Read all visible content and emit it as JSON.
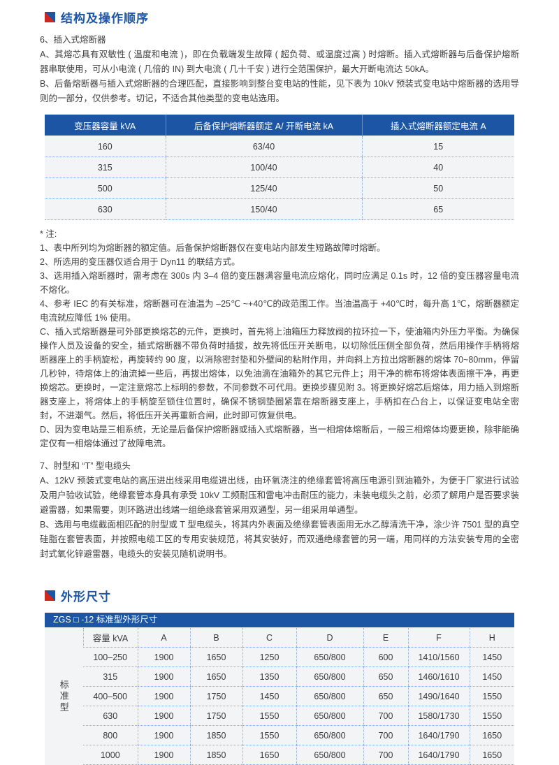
{
  "accent": {
    "blue": "#1b55a4",
    "red": "#ce2722",
    "row_bg": "#f3f4f6",
    "dotted_border": "#8aa7d6"
  },
  "section1": {
    "title": "结构及操作顺序",
    "para6_title": "6、插入式熔断器",
    "para6_a": "A、其熔芯具有双敏性 ( 温度和电流 )，即在负载端发生故障 ( 超负荷、或温度过高 ) 时熔断。插入式熔断器与后备保护熔断器串联使用，可从小电流 ( 几倍的 IN) 到大电流 ( 几十千安 ) 进行全范围保护，最大开断电流达 50kA。",
    "para6_b": "B、后备熔断器与插入式熔断器的合理匹配，直接影响到整台变电站的性能，见下表为 10kV 预装式变电站中熔断器的选用导则的一部分，仅供参考。切记，不适合其他类型的变电站选用。"
  },
  "fuse_table": {
    "headers": [
      "变压器容量 kVA",
      "后备保护熔断器额定 A/ 开断电流 kA",
      "插入式熔断器额定电流 A"
    ],
    "rows": [
      [
        "160",
        "63/40",
        "15"
      ],
      [
        "315",
        "100/40",
        "40"
      ],
      [
        "500",
        "125/40",
        "50"
      ],
      [
        "630",
        "150/40",
        "65"
      ]
    ]
  },
  "notes": {
    "title": "* 注:",
    "items": [
      "1、表中所列均为熔断器的额定值。后备保护熔断器仅在变电站内部发生短路故障时熔断。",
      "2、所选用的变压器仅适合用于 Dyn11 的联结方式。",
      "3、选用插入熔断器时，需考虑在 300s 内 3–4 倍的变压器满容量电流应熔化，同时应满足 0.1s 时，12 倍的变压器容量电流不熔化。",
      "4、参考 IEC 的有关标准，熔断器可在油温为 –25℃ ~+40℃的政范围工作。当油温高于 +40℃时，每升高 1℃，熔断器额定电流就应降低 1% 使用。",
      "C、插入式熔断器是可外部更换熔芯的元件，更换时，首先将上油箱压力释放阀的拉环拉一下，使油箱内外压力平衡。为确保操作人员及设备的安全，插式熔断器不带负荷时插拔，故先将低压开关断电，以切除低压侧全部负荷，然后用操作手柄将熔断器座上的手柄旋松，再旋转约 90 度，以消除密封垫和外壁间的粘附作用，并向斜上方拉出熔断器的熔体 70~80mm，停留几秒钟，待熔体上的油流掉一些后，再拔出熔体，以免油滴在油箱外的其它元件上；用干净的棉布将熔体表面擦干净，再更换熔芯。更换时，一定注意熔芯上标明的参数，不同参数不可代用。更换步骤见附 3。将更换好熔芯后熔体，用力插入到熔断器支座上，将熔体上的手柄旋至锁住位置时，确保不锈钢垫圈紧靠在熔断器支座上，手柄扣在凸台上，以保证变电站全密封，不进潮气。然后，将低压开关再重新合闸，此时即可恢复供电。",
      "D、因为变电站是三相系统，无论是后备保护熔断器或插入式熔断器，当一相熔体熔断后，一般三相熔体均要更换，除非能确定仅有一相熔体通过了故障电流。"
    ]
  },
  "para7": {
    "title": "7、肘型和 “T” 型电缆头",
    "a": "A、12kV 预装式变电站的高压进出线采用电缆进出线，由环氧浇注的绝缘套管将高压电源引到油箱外，为便于厂家进行试验及用户验收试验，绝缘套管本身具有承受 10kV 工频耐压和雷电冲击耐压的能力，未装电缆头之前，必须了解用户是否要求装避雷器，如果需要，则环路进出线端一组绝缘套管采用双通型，另一组采用单通型。",
    "b": "B、选用与电缆截面相匹配的肘型或 T 型电缆头，将其内外表面及绝缘套管表面用无水乙醇清洗干净，涂少许 7501 型的真空硅脂在套管表面，并按照电缆工区的专用安装规范，将其安装好，而双通绝缘套管的另一端，用同样的方法安装专用的全密封式氧化锌避雷器，电缆头的安装见随机说明书。"
  },
  "section2": {
    "title": "外形尺寸"
  },
  "dim_table": {
    "titlebar": "ZGS □ -12 标准型外形尺寸",
    "group_label": "标准型",
    "headers": [
      "容量 kVA",
      "A",
      "B",
      "C",
      "D",
      "E",
      "F",
      "H"
    ],
    "rows": [
      [
        "100–250",
        "1900",
        "1650",
        "1250",
        "650/800",
        "600",
        "1410/1560",
        "1450"
      ],
      [
        "315",
        "1900",
        "1650",
        "1350",
        "650/800",
        "650",
        "1460/1610",
        "1450"
      ],
      [
        "400–500",
        "1900",
        "1750",
        "1450",
        "650/800",
        "650",
        "1490/1640",
        "1550"
      ],
      [
        "630",
        "1900",
        "1750",
        "1550",
        "650/800",
        "700",
        "1580/1730",
        "1550"
      ],
      [
        "800",
        "1900",
        "1850",
        "1550",
        "650/800",
        "700",
        "1640/1790",
        "1650"
      ],
      [
        "1000",
        "1900",
        "1850",
        "1650",
        "650/800",
        "700",
        "1640/1790",
        "1650"
      ]
    ]
  }
}
